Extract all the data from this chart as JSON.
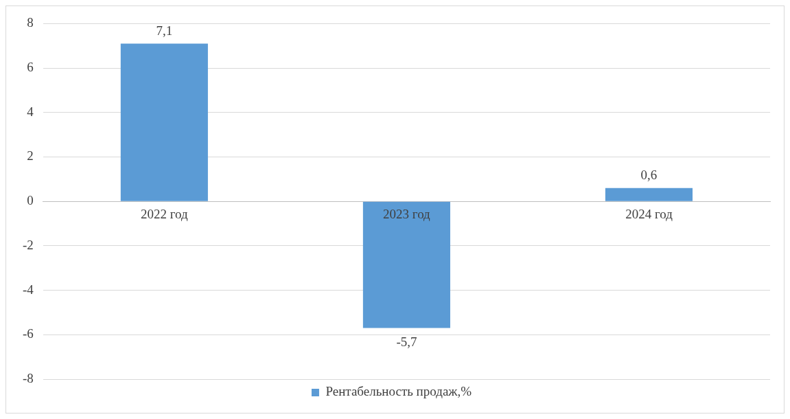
{
  "chart_data": {
    "type": "bar",
    "categories": [
      "2022 год",
      "2023 год",
      "2024 год"
    ],
    "series": [
      {
        "name": "Рентабельность продаж,%",
        "color": "#5b9bd5",
        "values": [
          7.1,
          -5.7,
          0.6
        ],
        "value_labels": [
          "7,1",
          "-5,7",
          "0,6"
        ]
      }
    ],
    "ylim": [
      -8,
      8
    ],
    "yticks": [
      -8,
      -6,
      -4,
      -2,
      0,
      2,
      4,
      6,
      8
    ],
    "grid": "y",
    "legend": "bottom"
  }
}
